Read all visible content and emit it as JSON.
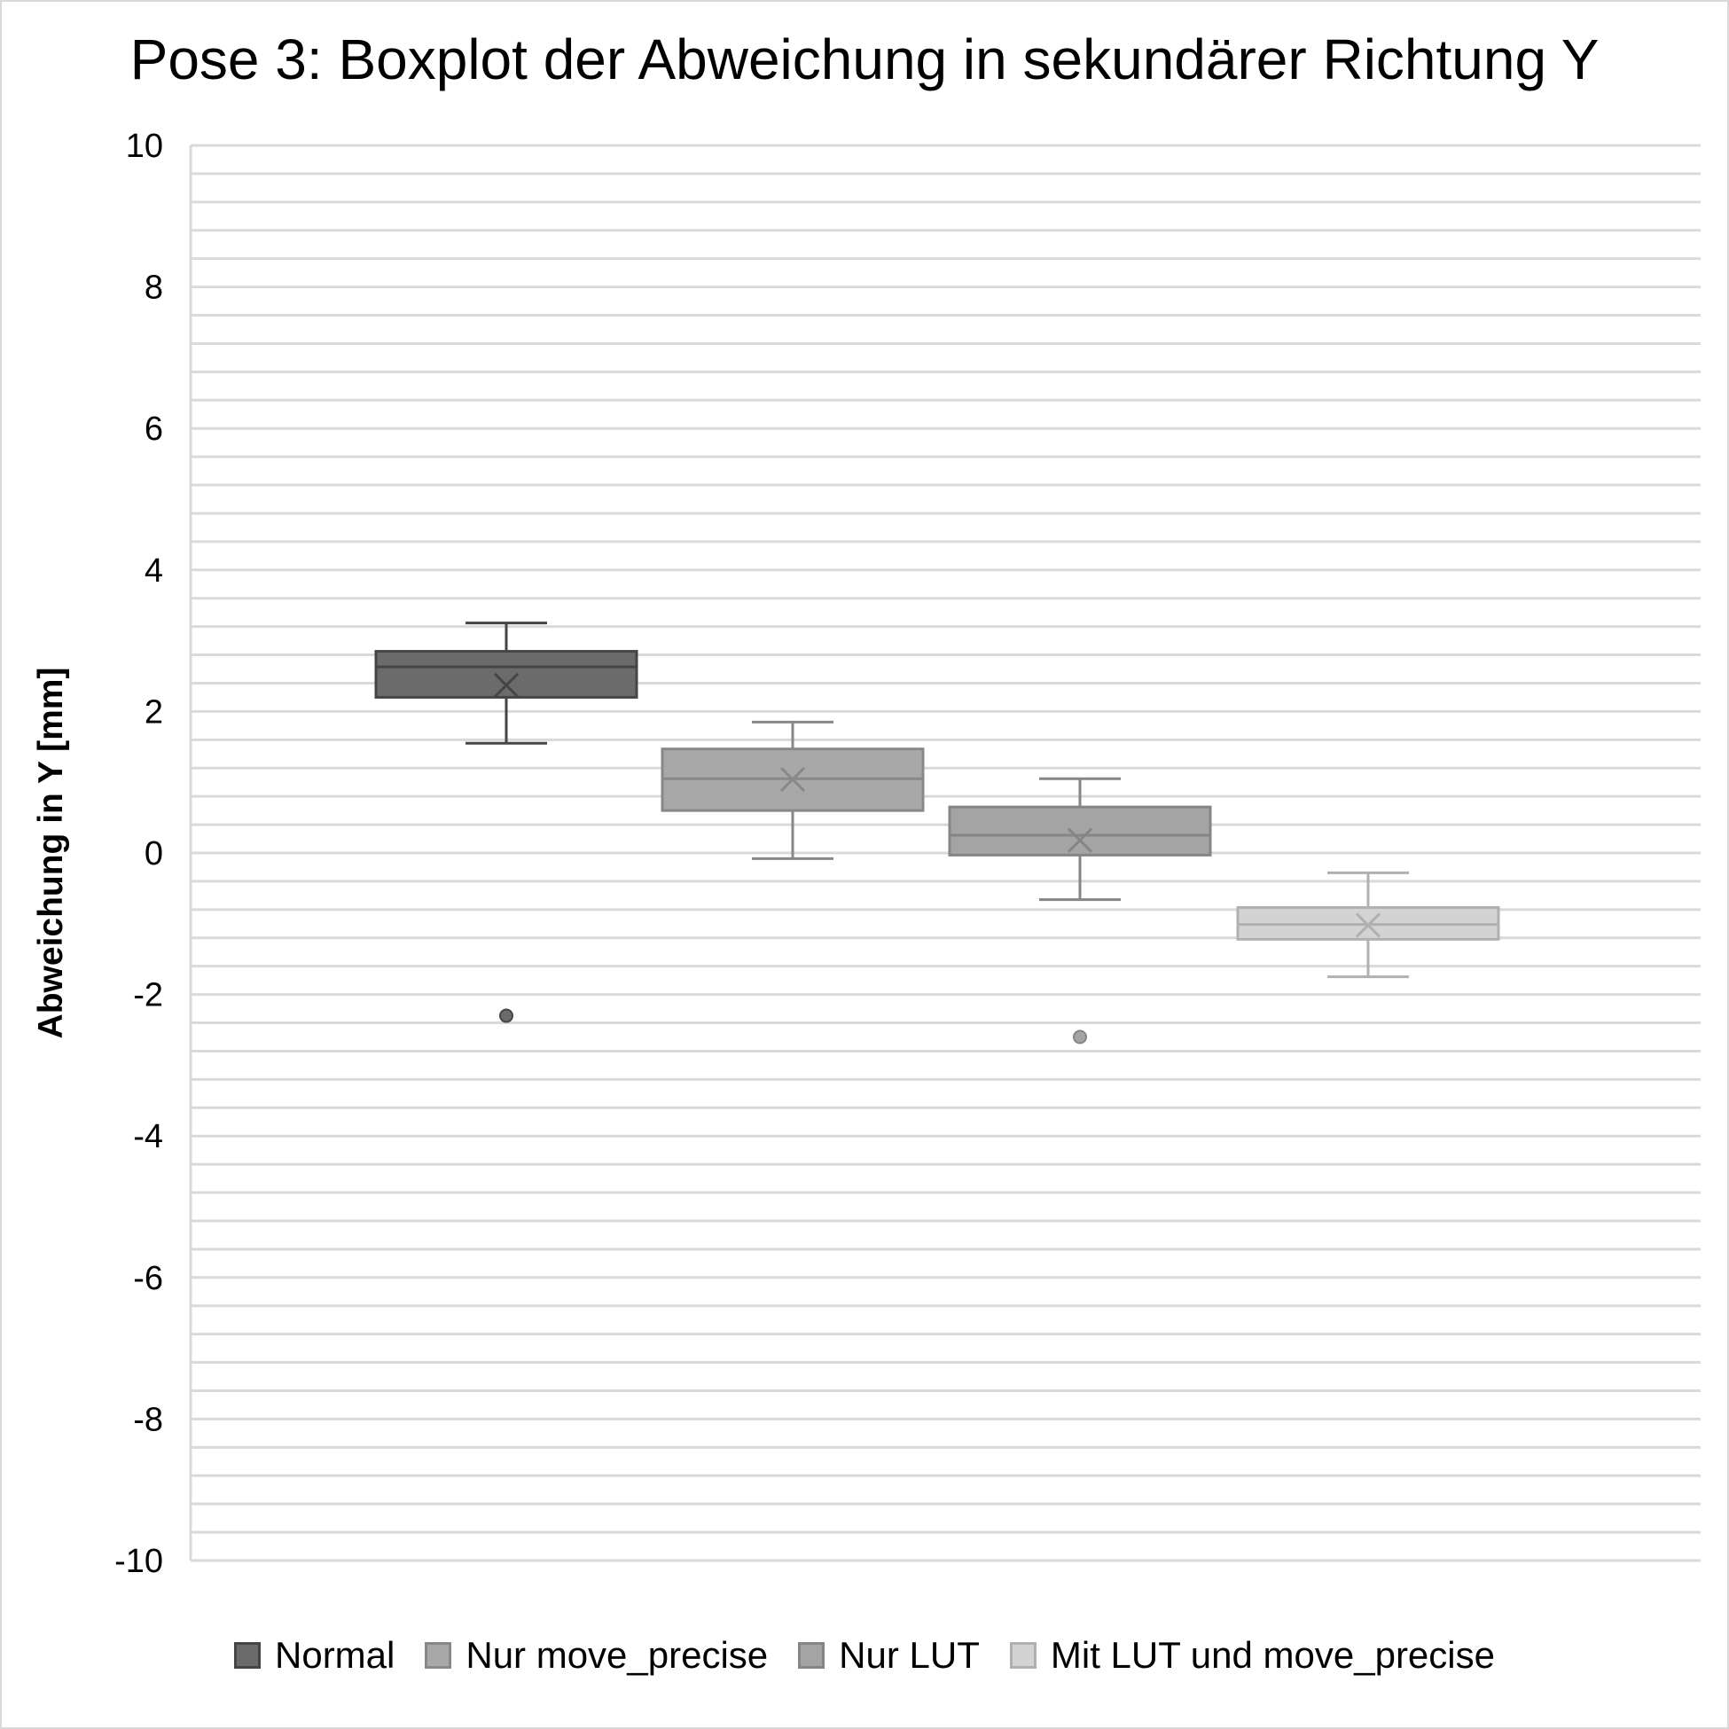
{
  "chart_data": {
    "type": "boxplot",
    "title": "Pose 3: Boxplot der Abweichung in sekundärer Richtung Y",
    "xlabel": "",
    "ylabel": "Abweichung in Y [mm]",
    "ylim": [
      -10,
      10
    ],
    "yticks": [
      "10",
      "8",
      "6",
      "4",
      "2",
      "0",
      "-2",
      "-4",
      "-6",
      "-8",
      "-10"
    ],
    "grid": true,
    "legend_position": "bottom",
    "series": [
      {
        "name": "Normal",
        "fill": "#6b6b6b",
        "stroke": "#454545",
        "whisker_low": 1.55,
        "q1": 2.2,
        "median": 2.63,
        "q3": 2.85,
        "whisker_high": 3.25,
        "mean": 2.37,
        "outliers": [
          -2.3
        ]
      },
      {
        "name": "Nur move_precise",
        "fill": "#a8a8a8",
        "stroke": "#888888",
        "whisker_low": -0.08,
        "q1": 0.6,
        "median": 1.05,
        "q3": 1.47,
        "whisker_high": 1.85,
        "mean": 1.04,
        "outliers": []
      },
      {
        "name": "Nur LUT",
        "fill": "#a4a4a4",
        "stroke": "#858585",
        "whisker_low": -0.66,
        "q1": -0.03,
        "median": 0.25,
        "q3": 0.65,
        "whisker_high": 1.05,
        "mean": 0.18,
        "outliers": [
          -2.6
        ]
      },
      {
        "name": "Mit LUT und move_precise",
        "fill": "#d3d3d3",
        "stroke": "#b0b0b0",
        "whisker_low": -1.75,
        "q1": -1.22,
        "median": -1.01,
        "q3": -0.77,
        "whisker_high": -0.28,
        "mean": -1.02,
        "outliers": []
      }
    ]
  },
  "colors": {
    "gridline": "#d9d9d9",
    "frame": "#d9d9d9"
  }
}
